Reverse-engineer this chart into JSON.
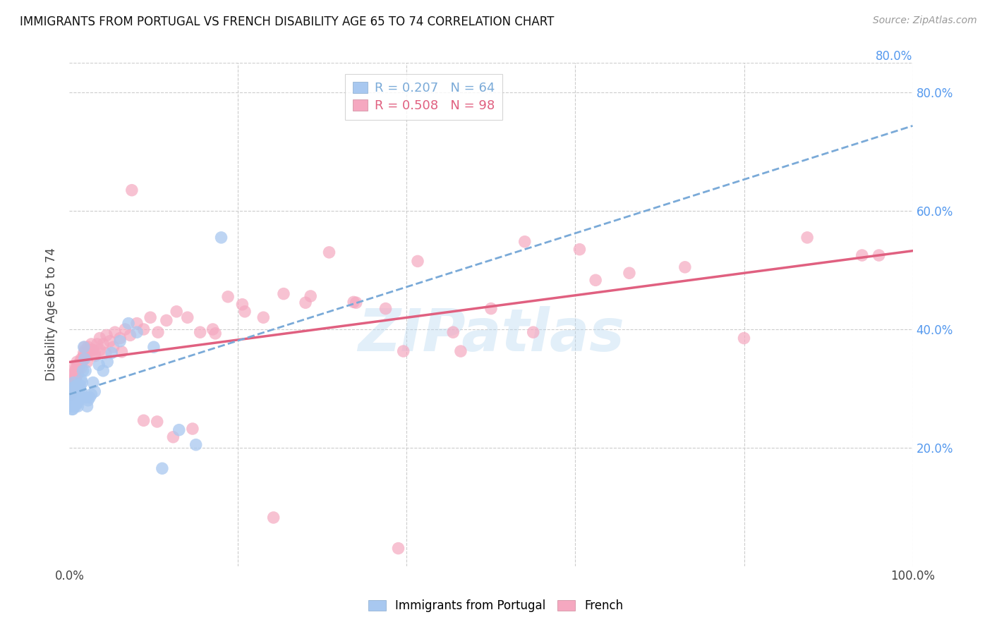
{
  "title": "IMMIGRANTS FROM PORTUGAL VS FRENCH DISABILITY AGE 65 TO 74 CORRELATION CHART",
  "source": "Source: ZipAtlas.com",
  "ylabel": "Disability Age 65 to 74",
  "xlim": [
    0.0,
    1.0
  ],
  "ylim": [
    0.0,
    0.85
  ],
  "x_ticks": [
    0.0,
    0.2,
    0.4,
    0.6,
    0.8,
    1.0
  ],
  "y_ticks": [
    0.2,
    0.4,
    0.6,
    0.8
  ],
  "x_tick_labels": [
    "0.0%",
    "",
    "",
    "",
    "",
    "100.0%"
  ],
  "y_tick_labels_right": [
    "20.0%",
    "40.0%",
    "60.0%",
    "80.0%"
  ],
  "top_right_label": "80.0%",
  "background_color": "#ffffff",
  "grid_color": "#cccccc",
  "watermark": "ZIPatlas",
  "legend_blue_label": "Immigrants from Portugal",
  "legend_pink_label": "French",
  "blue_R": 0.207,
  "blue_N": 64,
  "pink_R": 0.508,
  "pink_N": 98,
  "blue_color": "#a8c8f0",
  "pink_color": "#f5a8c0",
  "blue_line_color": "#7aaad8",
  "pink_line_color": "#e06080",
  "blue_scatter_x": [
    0.001,
    0.001,
    0.002,
    0.002,
    0.002,
    0.003,
    0.003,
    0.003,
    0.004,
    0.004,
    0.004,
    0.004,
    0.005,
    0.005,
    0.005,
    0.005,
    0.006,
    0.006,
    0.006,
    0.007,
    0.007,
    0.007,
    0.008,
    0.008,
    0.008,
    0.009,
    0.009,
    0.009,
    0.01,
    0.01,
    0.01,
    0.011,
    0.011,
    0.012,
    0.012,
    0.013,
    0.013,
    0.014,
    0.014,
    0.015,
    0.015,
    0.016,
    0.017,
    0.018,
    0.019,
    0.02,
    0.021,
    0.022,
    0.024,
    0.026,
    0.028,
    0.03,
    0.035,
    0.04,
    0.045,
    0.05,
    0.06,
    0.07,
    0.08,
    0.1,
    0.11,
    0.13,
    0.15,
    0.18
  ],
  "blue_scatter_y": [
    0.28,
    0.295,
    0.27,
    0.285,
    0.3,
    0.265,
    0.28,
    0.295,
    0.265,
    0.275,
    0.285,
    0.3,
    0.27,
    0.28,
    0.295,
    0.31,
    0.275,
    0.285,
    0.3,
    0.27,
    0.285,
    0.3,
    0.275,
    0.29,
    0.305,
    0.275,
    0.29,
    0.305,
    0.27,
    0.285,
    0.3,
    0.28,
    0.295,
    0.285,
    0.3,
    0.285,
    0.305,
    0.295,
    0.315,
    0.285,
    0.31,
    0.33,
    0.37,
    0.35,
    0.33,
    0.285,
    0.27,
    0.28,
    0.285,
    0.29,
    0.31,
    0.295,
    0.34,
    0.33,
    0.345,
    0.36,
    0.38,
    0.41,
    0.395,
    0.37,
    0.165,
    0.23,
    0.205,
    0.555
  ],
  "pink_scatter_x": [
    0.001,
    0.001,
    0.002,
    0.003,
    0.003,
    0.004,
    0.005,
    0.005,
    0.006,
    0.006,
    0.007,
    0.007,
    0.008,
    0.008,
    0.009,
    0.009,
    0.01,
    0.01,
    0.011,
    0.012,
    0.013,
    0.014,
    0.015,
    0.016,
    0.017,
    0.018,
    0.019,
    0.02,
    0.022,
    0.024,
    0.026,
    0.028,
    0.03,
    0.033,
    0.036,
    0.04,
    0.044,
    0.048,
    0.054,
    0.06,
    0.066,
    0.072,
    0.08,
    0.088,
    0.096,
    0.105,
    0.115,
    0.127,
    0.14,
    0.155,
    0.17,
    0.188,
    0.208,
    0.23,
    0.254,
    0.28,
    0.308,
    0.34,
    0.375,
    0.413,
    0.455,
    0.5,
    0.55,
    0.605,
    0.664,
    0.73,
    0.8,
    0.875,
    0.94,
    0.96,
    0.004,
    0.006,
    0.008,
    0.011,
    0.014,
    0.017,
    0.021,
    0.025,
    0.03,
    0.036,
    0.043,
    0.052,
    0.062,
    0.074,
    0.088,
    0.104,
    0.123,
    0.146,
    0.173,
    0.205,
    0.242,
    0.286,
    0.337,
    0.396,
    0.464,
    0.54,
    0.624,
    0.39
  ],
  "pink_scatter_y": [
    0.295,
    0.305,
    0.29,
    0.3,
    0.315,
    0.305,
    0.32,
    0.31,
    0.325,
    0.335,
    0.315,
    0.33,
    0.32,
    0.335,
    0.33,
    0.345,
    0.325,
    0.34,
    0.335,
    0.34,
    0.345,
    0.335,
    0.345,
    0.35,
    0.36,
    0.37,
    0.365,
    0.355,
    0.37,
    0.365,
    0.375,
    0.365,
    0.36,
    0.375,
    0.385,
    0.375,
    0.39,
    0.38,
    0.395,
    0.385,
    0.4,
    0.39,
    0.41,
    0.4,
    0.42,
    0.395,
    0.415,
    0.43,
    0.42,
    0.395,
    0.4,
    0.455,
    0.43,
    0.42,
    0.46,
    0.445,
    0.53,
    0.445,
    0.435,
    0.515,
    0.395,
    0.435,
    0.395,
    0.535,
    0.495,
    0.505,
    0.385,
    0.555,
    0.525,
    0.525,
    0.31,
    0.305,
    0.325,
    0.34,
    0.35,
    0.355,
    0.345,
    0.365,
    0.355,
    0.365,
    0.36,
    0.37,
    0.362,
    0.635,
    0.246,
    0.244,
    0.218,
    0.232,
    0.393,
    0.442,
    0.082,
    0.456,
    0.446,
    0.363,
    0.363,
    0.548,
    0.483,
    0.03
  ]
}
